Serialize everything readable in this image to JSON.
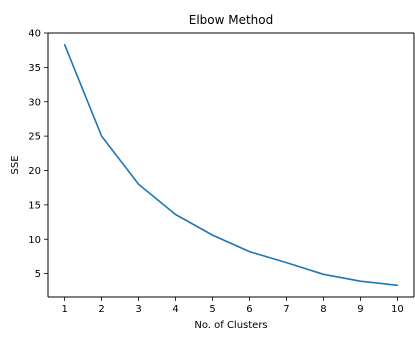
{
  "chart_data": {
    "type": "line",
    "title": "Elbow Method",
    "xlabel": "No. of Clusters",
    "ylabel": "SSE",
    "x": [
      1,
      2,
      3,
      4,
      5,
      6,
      7,
      8,
      9,
      10
    ],
    "series": [
      {
        "values": [
          38.3,
          25.0,
          18.0,
          13.6,
          10.6,
          8.2,
          6.6,
          4.9,
          3.9,
          3.3
        ],
        "color": "#1f77b4"
      }
    ],
    "xticks": [
      "1",
      "2",
      "3",
      "4",
      "5",
      "6",
      "7",
      "8",
      "9",
      "10"
    ],
    "yticks": [
      "5",
      "10",
      "15",
      "20",
      "25",
      "30",
      "35",
      "40"
    ],
    "xlim": [
      0.55,
      10.45
    ],
    "ylim": [
      1.6,
      40.0
    ],
    "grid": false,
    "legend": "none"
  }
}
